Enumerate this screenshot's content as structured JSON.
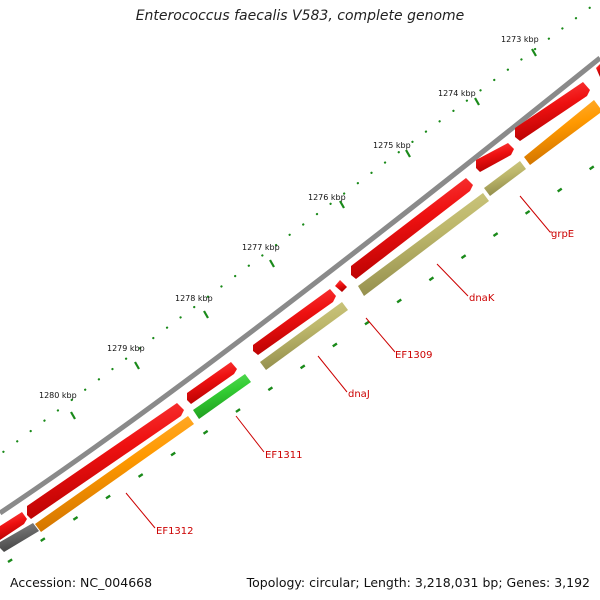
{
  "title": "Enterococcus faecalis V583, complete genome",
  "footer": {
    "accession": "Accession: NC_004668",
    "summary": "Topology: circular; Length: 3,218,031 bp; Genes: 3,192"
  },
  "scale": {
    "ticks": [
      "1273 kbp",
      "1274 kbp",
      "1275 kbp",
      "1276 kbp",
      "1277 kbp",
      "1278 kbp",
      "1279 kbp",
      "1280 kbp"
    ]
  },
  "colors": {
    "backbone": "#8a8a8a",
    "forward_strand": "#ee1111",
    "cog_orange": "#ff9900",
    "cog_khaki": "#bdb76b",
    "cog_green": "#33cc33",
    "cog_gray": "#666666",
    "tick_green": "#1a8a1a",
    "label_red": "#cc0000"
  },
  "genes": [
    {
      "label": "grpE"
    },
    {
      "label": "dnaK"
    },
    {
      "label": "EF1309"
    },
    {
      "label": "dnaJ"
    },
    {
      "label": "EF1311"
    },
    {
      "label": "EF1312"
    }
  ]
}
